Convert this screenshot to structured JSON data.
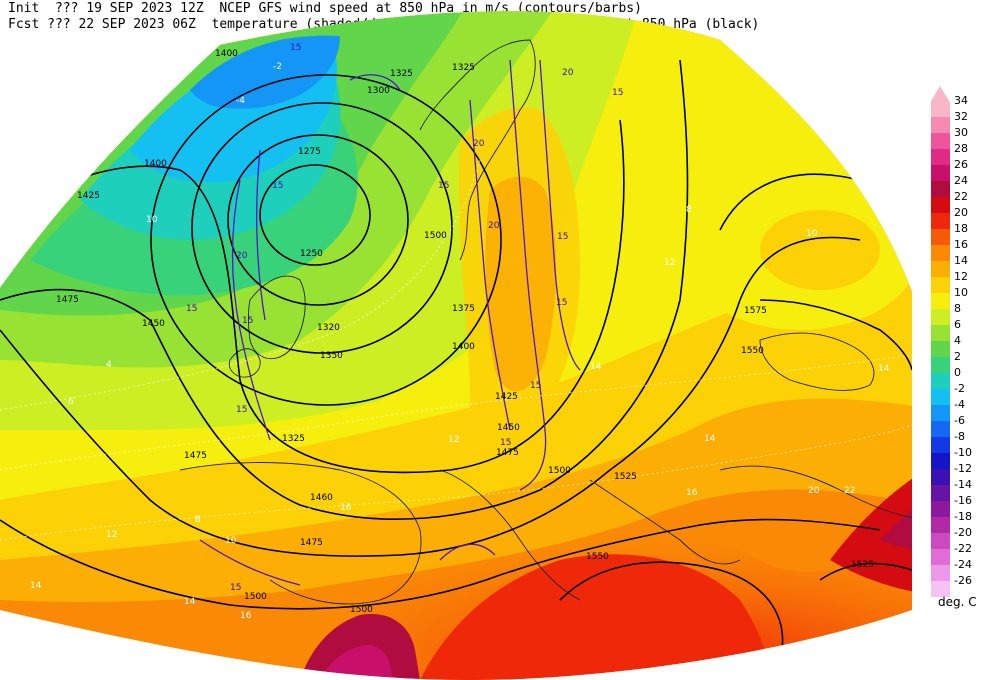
{
  "header": {
    "line1": "Init  ??? 19 SEP 2023 12Z  NCEP GFS wind speed at 850 hPa in m/s (contours/barbs)",
    "line2": "Fcst ??? 22 SEP 2023 06Z  temperature (shaded/dotted) and geopotential height at 850 hPa (black)"
  },
  "colorbar": {
    "units": "deg. C",
    "levels": [
      {
        "label": "34",
        "color": "#f8b6c8"
      },
      {
        "label": "32",
        "color": "#f68ab0"
      },
      {
        "label": "30",
        "color": "#f0549a"
      },
      {
        "label": "28",
        "color": "#e02a86"
      },
      {
        "label": "26",
        "color": "#c8106a"
      },
      {
        "label": "24",
        "color": "#b00c40"
      },
      {
        "label": "22",
        "color": "#d40c12"
      },
      {
        "label": "20",
        "color": "#f0280a"
      },
      {
        "label": "18",
        "color": "#f65a06"
      },
      {
        "label": "16",
        "color": "#fa8a06"
      },
      {
        "label": "14",
        "color": "#fcae04"
      },
      {
        "label": "12",
        "color": "#fcd206"
      },
      {
        "label": "10",
        "color": "#f6ee0c"
      },
      {
        "label": "8",
        "color": "#ccee22"
      },
      {
        "label": "6",
        "color": "#98e234"
      },
      {
        "label": "4",
        "color": "#62d64a"
      },
      {
        "label": "2",
        "color": "#38d27a"
      },
      {
        "label": "0",
        "color": "#1ecfbc"
      },
      {
        "label": "-2",
        "color": "#14bff2"
      },
      {
        "label": "-4",
        "color": "#1496f6"
      },
      {
        "label": "-6",
        "color": "#1468f4"
      },
      {
        "label": "-8",
        "color": "#1438e6"
      },
      {
        "label": "-10",
        "color": "#1414c8"
      },
      {
        "label": "-12",
        "color": "#3a12b4"
      },
      {
        "label": "-14",
        "color": "#6614a4"
      },
      {
        "label": "-16",
        "color": "#8c1a9c"
      },
      {
        "label": "-18",
        "color": "#b02aa6"
      },
      {
        "label": "-20",
        "color": "#cc4ac0"
      },
      {
        "label": "-22",
        "color": "#e06cd8"
      },
      {
        "label": "-24",
        "color": "#ee98ea"
      },
      {
        "label": "-26",
        "color": "#f6c2f4"
      }
    ]
  },
  "map_labels": {
    "height": [
      "1400",
      "1325",
      "1325",
      "1300",
      "1275",
      "1400",
      "1425",
      "1250",
      "1500",
      "1475",
      "1450",
      "1375",
      "1320",
      "1350",
      "1400",
      "1425",
      "1325",
      "1450",
      "1475",
      "1475",
      "1575",
      "1550",
      "1525",
      "1500",
      "1460",
      "1475",
      "1500",
      "1500",
      "1550",
      "1525"
    ],
    "wind": [
      "15",
      "20",
      "15",
      "20",
      "15",
      "15",
      "15",
      "15",
      "20",
      "15",
      "15",
      "15",
      "20",
      "15",
      "15",
      "15"
    ],
    "temp": [
      "-4",
      "-2",
      "10",
      "4",
      "6",
      "8",
      "10",
      "12",
      "14",
      "16",
      "8",
      "10",
      "12",
      "14",
      "16",
      "20",
      "22",
      "14",
      "16",
      "14",
      "14",
      "12"
    ]
  }
}
